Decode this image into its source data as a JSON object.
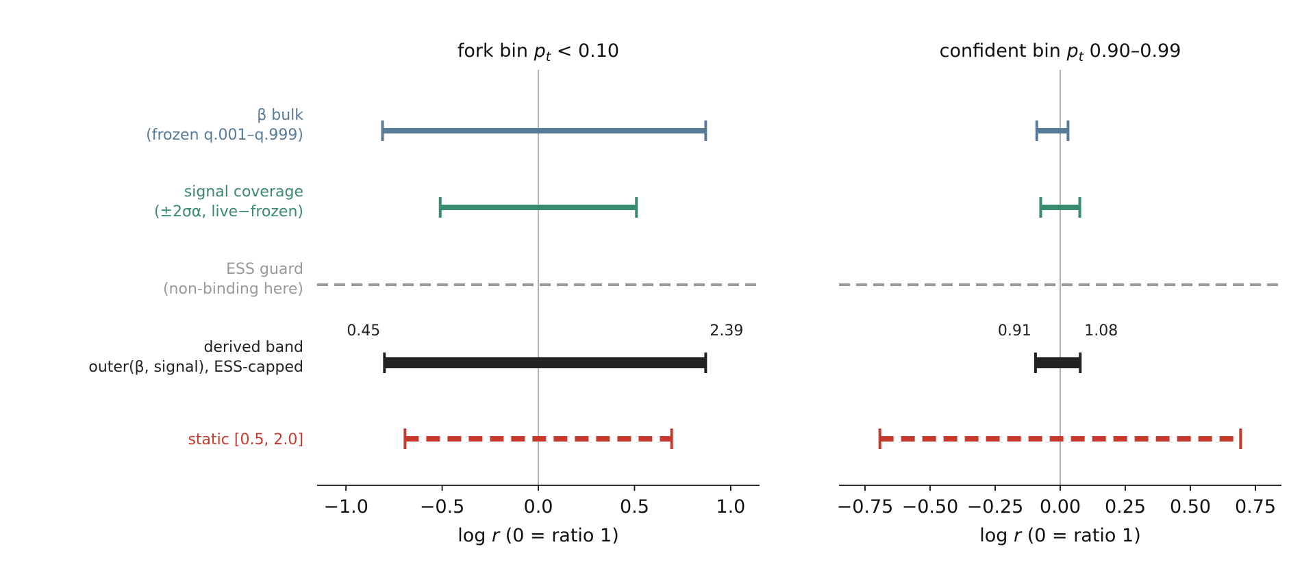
{
  "chart_data": {
    "type": "interval",
    "rows": [
      {
        "id": "beta",
        "label_line1": "β bulk",
        "label_line2": "(frozen q.001–q.999)",
        "color": "#587b99",
        "style": "solid"
      },
      {
        "id": "signal",
        "label_line1": "signal coverage",
        "label_line2": "(±2σα, live−frozen)",
        "color": "#3a8a6e",
        "style": "solid"
      },
      {
        "id": "ess",
        "label_line1": "ESS guard",
        "label_line2": "(non-binding here)",
        "color": "#999999",
        "style": "dashed"
      },
      {
        "id": "derived",
        "label_line1": "derived band",
        "label_line2": "outer(β, signal), ESS-capped",
        "color": "#222222",
        "style": "solid"
      },
      {
        "id": "static",
        "label_line1": "static [0.5, 2.0]",
        "label_line2": "",
        "color": "#c8392d",
        "style": "dashed"
      }
    ],
    "panels": [
      {
        "title": "fork bin  pt < 0.10",
        "title_plain": "fork bin",
        "title_var": "p",
        "title_sub": "t",
        "title_rest": " < 0.10",
        "xlabel": "log r   (0 = ratio 1)",
        "xlim": [
          -1.15,
          1.15
        ],
        "xticks": [
          -1.0,
          -0.5,
          0.0,
          0.5,
          1.0
        ],
        "xtick_labels": [
          "−1.0",
          "−0.5",
          "0.0",
          "0.5",
          "1.0"
        ],
        "intervals": {
          "beta": [
            -0.81,
            0.87
          ],
          "signal": [
            -0.51,
            0.51
          ],
          "ess": [
            -1.15,
            1.15
          ],
          "derived": [
            -0.8,
            0.87
          ],
          "static": [
            -0.693,
            0.693
          ]
        },
        "derived_labels": {
          "low": "0.45",
          "high": "2.39"
        }
      },
      {
        "title": "confident bin  pt 0.90–0.99",
        "title_plain": "confident bin",
        "title_var": "p",
        "title_sub": "t",
        "title_rest": " 0.90–0.99",
        "xlabel": "log r   (0 = ratio 1)",
        "xlim": [
          -0.85,
          0.85
        ],
        "xticks": [
          -0.75,
          -0.5,
          -0.25,
          0.0,
          0.25,
          0.5,
          0.75
        ],
        "xtick_labels": [
          "−0.75",
          "−0.50",
          "−0.25",
          "0.00",
          "0.25",
          "0.50",
          "0.75"
        ],
        "intervals": {
          "beta": [
            -0.09,
            0.03
          ],
          "signal": [
            -0.075,
            0.075
          ],
          "ess": [
            -0.85,
            0.85
          ],
          "derived": [
            -0.095,
            0.077
          ],
          "static": [
            -0.693,
            0.693
          ]
        },
        "derived_labels": {
          "low": "0.91",
          "high": "1.08"
        }
      }
    ],
    "grid": false,
    "legend": "none"
  }
}
